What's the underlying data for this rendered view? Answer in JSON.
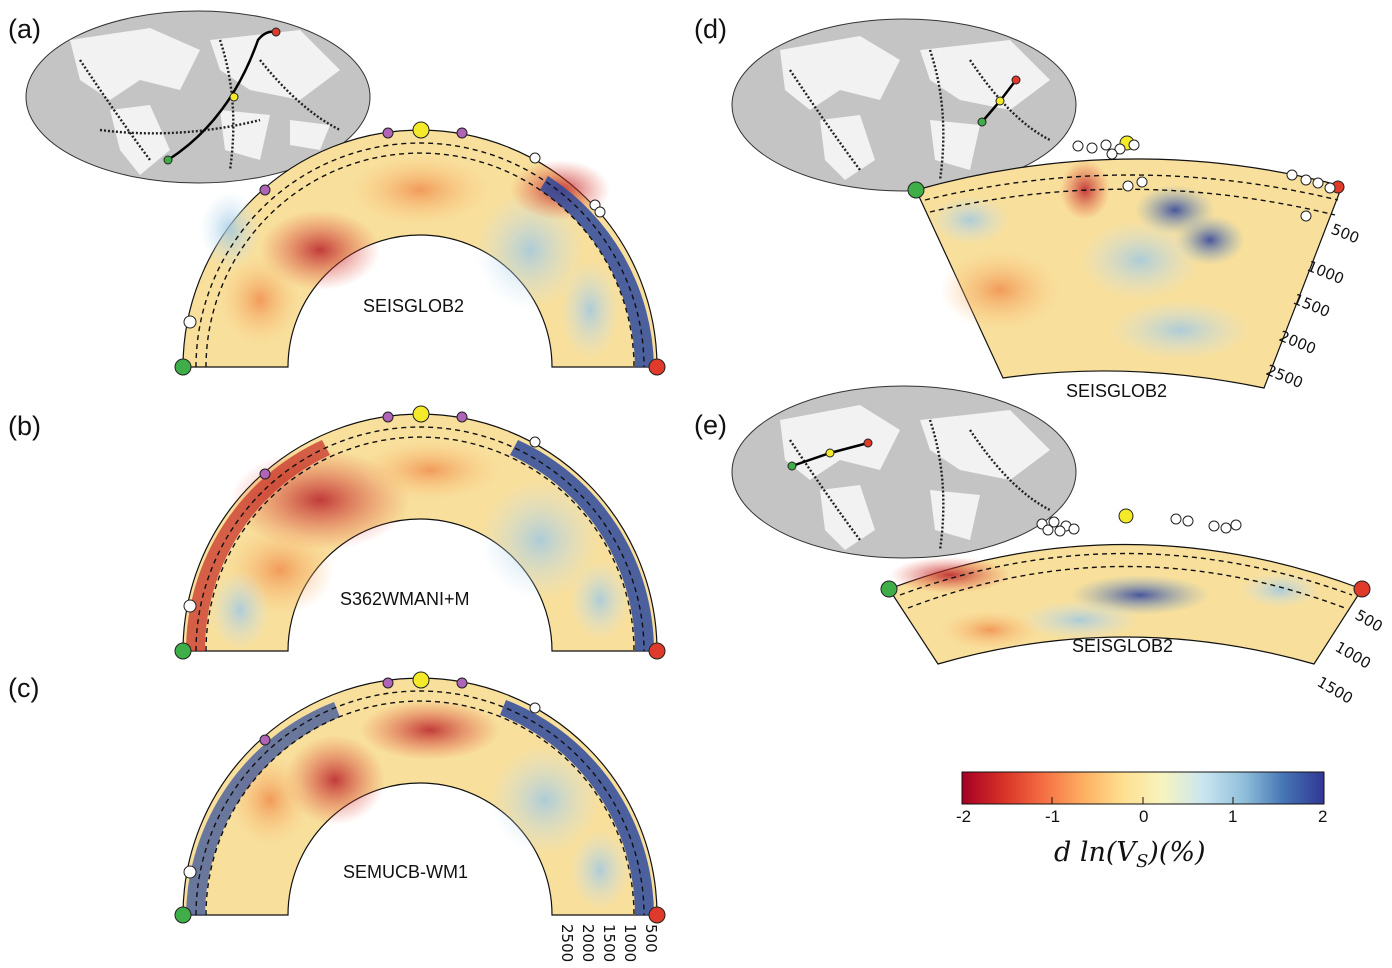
{
  "panels": [
    {
      "id": "a",
      "label": "(a)",
      "model": "SEISGLOB2"
    },
    {
      "id": "b",
      "label": "(b)",
      "model": "S362WMANI+M"
    },
    {
      "id": "c",
      "label": "(c)",
      "model": "SEMUCB-WM1"
    },
    {
      "id": "d",
      "label": "(d)",
      "model": "SEISGLOB2"
    },
    {
      "id": "e",
      "label": "(e)",
      "model": "SEISGLOB2"
    }
  ],
  "depth_ticks_c": [
    "500",
    "1000",
    "1500",
    "2000",
    "2500"
  ],
  "depth_ticks_d": [
    "500",
    "1000",
    "1500",
    "2000",
    "2500"
  ],
  "depth_ticks_e": [
    "500",
    "1000",
    "1500"
  ],
  "colorbar": {
    "ticks": [
      "-2",
      "-1",
      "0",
      "1",
      "2"
    ],
    "title": "d ln(V",
    "title_sub": "S",
    "title_tail": ")(%)",
    "range": [
      -2,
      2
    ],
    "colors": [
      "#a50026",
      "#d73027",
      "#f46d43",
      "#fdae61",
      "#fee090",
      "#f7f3c0",
      "#c9e6f0",
      "#91bfdb",
      "#4575b4",
      "#313695"
    ]
  },
  "colors": {
    "start_marker": "#3fae49",
    "end_marker": "#e03a2a",
    "mid_marker": "#f4ea2a",
    "volcano": "#b064b8",
    "land": "#f2f2f2",
    "ocean": "#c4c4c4"
  }
}
